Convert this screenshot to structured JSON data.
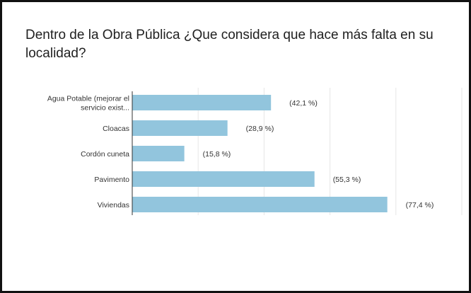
{
  "title": "Dentro de la Obra Pública ¿Que considera que hace más falta en su localidad?",
  "colors": {
    "bar": "#92c5dd",
    "grid": "#e6e6e6",
    "axis": "#333333",
    "text": "#333333"
  },
  "chart_data": {
    "type": "bar",
    "orientation": "horizontal",
    "title": "Dentro de la Obra Pública ¿Que considera que hace más falta en su localidad?",
    "categories": [
      [
        "Agua Potable (mejorar el",
        "servicio exist..."
      ],
      [
        "Cloacas"
      ],
      [
        "Cordón cuneta"
      ],
      [
        "Pavimento"
      ],
      [
        "Viviendas"
      ]
    ],
    "values": [
      42.1,
      28.9,
      15.8,
      55.3,
      77.4
    ],
    "data_labels": [
      "(42,1 %)",
      "(28,9 %)",
      "(15,8 %)",
      "(55,3 %)",
      "(77,4 %)"
    ],
    "xlim": [
      0,
      100
    ],
    "grid": true
  }
}
